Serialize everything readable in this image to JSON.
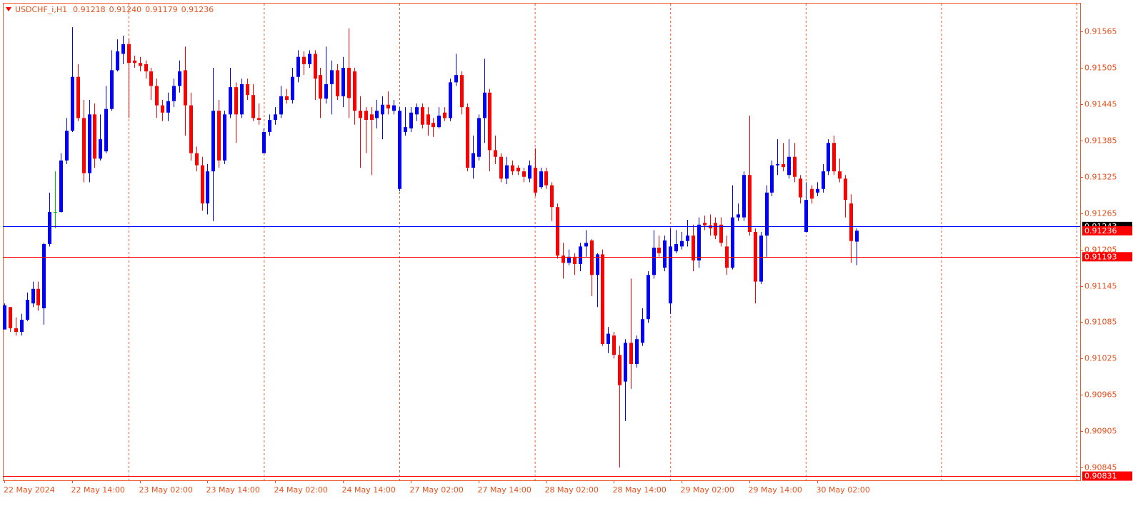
{
  "chart_data": {
    "type": "candlestick",
    "title": "USDCHF_i,H1",
    "title_values": [
      "0.91218",
      "0.91240",
      "0.91179",
      "0.91236"
    ],
    "categories": [
      "22 May 2024",
      null,
      null,
      null,
      null,
      null,
      null,
      null,
      null,
      null,
      null,
      null,
      "22 May 14:00",
      null,
      null,
      null,
      null,
      null,
      null,
      null,
      null,
      null,
      null,
      null,
      "23 May 02:00",
      null,
      null,
      null,
      null,
      null,
      null,
      null,
      null,
      null,
      null,
      null,
      "23 May 14:00",
      null,
      null,
      null,
      null,
      null,
      null,
      null,
      null,
      null,
      null,
      null,
      "24 May 02:00",
      null,
      null,
      null,
      null,
      null,
      null,
      null,
      null,
      null,
      null,
      null,
      "24 May 14:00",
      null,
      null,
      null,
      null,
      null,
      null,
      null,
      null,
      null,
      null,
      null,
      "27 May 02:00",
      null,
      null,
      null,
      null,
      null,
      null,
      null,
      null,
      null,
      null,
      null,
      "27 May 14:00",
      null,
      null,
      null,
      null,
      null,
      null,
      null,
      null,
      null,
      null,
      null,
      "28 May 02:00",
      null,
      null,
      null,
      null,
      null,
      null,
      null,
      null,
      null,
      null,
      null,
      "28 May 14:00",
      null,
      null,
      null,
      null,
      null,
      null,
      null,
      null,
      null,
      null,
      null,
      "29 May 02:00",
      null,
      null,
      null,
      null,
      null,
      null,
      null,
      null,
      null,
      null,
      null,
      "29 May 14:00",
      null,
      null,
      null,
      null,
      null,
      null,
      null,
      null,
      null,
      null,
      null,
      "30 May 02:00",
      null,
      null,
      null,
      null,
      null,
      null,
      null
    ],
    "open": [
      0.91073,
      0.9111,
      0.91075,
      0.91069,
      0.91089,
      0.91116,
      0.9114,
      0.91108,
      0.91214,
      0.91267,
      0.91267,
      0.91352,
      0.91401,
      0.9149,
      0.91422,
      0.91331,
      0.91428,
      0.91355,
      0.91367,
      0.91437,
      0.91501,
      0.91528,
      0.91544,
      0.91517,
      0.91513,
      0.91511,
      0.91499,
      0.91475,
      0.91443,
      0.91431,
      0.9145,
      0.91475,
      0.91501,
      0.91443,
      0.91364,
      0.91344,
      0.91281,
      0.91334,
      0.91434,
      0.91352,
      0.91428,
      0.91473,
      0.91428,
      0.91478,
      0.9146,
      0.91422,
      0.91364,
      0.91399,
      0.91419,
      0.91428,
      0.91458,
      0.91452,
      0.9149,
      0.91523,
      0.91511,
      0.91528,
      0.91493,
      0.91454,
      0.91478,
      0.91501,
      0.91458,
      0.91505,
      0.91499,
      0.91434,
      0.91434,
      0.91428,
      0.91422,
      0.91428,
      0.91444,
      0.91434,
      0.91305,
      0.91399,
      0.91405,
      0.91428,
      0.9144,
      0.91428,
      0.91414,
      0.91407,
      0.91431,
      0.91422,
      0.91481,
      0.91493,
      0.9144,
      0.9134,
      0.91358,
      0.91422,
      0.91464,
      0.91369,
      0.91358,
      0.91322,
      0.91344,
      0.9134,
      0.91334,
      0.91322,
      0.9134,
      0.91308,
      0.91334,
      0.91311,
      0.91275,
      0.91195,
      0.91183,
      0.91193,
      0.91181,
      0.9121,
      0.9122,
      0.91163,
      0.91197,
      0.91049,
      0.91063,
      0.91031,
      0.90987,
      0.91051,
      0.91016,
      0.91051,
      0.9109,
      0.91163,
      0.91208,
      0.91175,
      0.91116,
      0.91202,
      0.9121,
      0.91219,
      0.91228,
      0.91187,
      0.91249,
      0.91245,
      0.91249,
      0.91246,
      0.9121,
      0.91175,
      0.91258,
      0.91258,
      0.91328,
      0.91234,
      0.91152,
      0.91228,
      0.91299,
      0.91344,
      0.91346,
      0.91328,
      0.91358,
      0.91322,
      0.91234,
      0.91305,
      0.91299,
      0.91305,
      0.91334,
      0.91381,
      0.91334,
      0.91322,
      0.91281,
      0.91218
    ],
    "high": [
      0.91116,
      0.9111,
      0.91093,
      0.91099,
      0.91134,
      0.91152,
      0.91152,
      0.91216,
      0.91299,
      0.91334,
      0.91364,
      0.91422,
      0.91572,
      0.91511,
      0.91452,
      0.91452,
      0.91446,
      0.91428,
      0.91475,
      0.91534,
      0.91552,
      0.91558,
      0.91552,
      0.91525,
      0.91523,
      0.91517,
      0.91505,
      0.91487,
      0.91452,
      0.91464,
      0.91487,
      0.91517,
      0.9154,
      0.91464,
      0.91375,
      0.91358,
      0.91346,
      0.91505,
      0.91452,
      0.91434,
      0.91505,
      0.91481,
      0.91487,
      0.91487,
      0.91478,
      0.91446,
      0.91405,
      0.91428,
      0.9144,
      0.91475,
      0.9147,
      0.91505,
      0.91534,
      0.91532,
      0.91534,
      0.91534,
      0.91505,
      0.9154,
      0.91517,
      0.91511,
      0.91523,
      0.9157,
      0.91505,
      0.91458,
      0.9144,
      0.9144,
      0.91452,
      0.91458,
      0.91466,
      0.91452,
      0.9144,
      0.9144,
      0.9144,
      0.91446,
      0.91446,
      0.9144,
      0.91422,
      0.9144,
      0.9144,
      0.91487,
      0.91528,
      0.91499,
      0.91446,
      0.91393,
      0.91428,
      0.9152,
      0.9147,
      0.91393,
      0.91364,
      0.91358,
      0.91352,
      0.91344,
      0.9134,
      0.91352,
      0.91372,
      0.9134,
      0.9134,
      0.91316,
      0.91281,
      0.91216,
      0.91205,
      0.91199,
      0.91216,
      0.91237,
      0.91222,
      0.91199,
      0.91205,
      0.91077,
      0.91069,
      0.91046,
      0.91057,
      0.91157,
      0.91063,
      0.91108,
      0.91169,
      0.91237,
      0.91228,
      0.91228,
      0.9124,
      0.91237,
      0.91234,
      0.91254,
      0.91246,
      0.91258,
      0.91261,
      0.91263,
      0.91258,
      0.91258,
      0.91228,
      0.91311,
      0.91281,
      0.91334,
      0.91426,
      0.9124,
      0.91234,
      0.91311,
      0.91352,
      0.91387,
      0.91381,
      0.91387,
      0.91381,
      0.91328,
      0.91316,
      0.91311,
      0.91316,
      0.91346,
      0.91387,
      0.91393,
      0.91355,
      0.91328,
      0.91296,
      0.9124
    ],
    "low": [
      0.91073,
      0.91069,
      0.91063,
      0.91063,
      0.91087,
      0.9111,
      0.91104,
      0.91081,
      0.9121,
      0.9124,
      0.91266,
      0.91346,
      0.91399,
      0.91417,
      0.91316,
      0.91316,
      0.9134,
      0.91352,
      0.91364,
      0.91434,
      0.91499,
      0.91511,
      0.91422,
      0.91505,
      0.91499,
      0.91487,
      0.91452,
      0.91422,
      0.91417,
      0.91417,
      0.9144,
      0.91464,
      0.91393,
      0.91352,
      0.91334,
      0.91269,
      0.91263,
      0.91252,
      0.9134,
      0.91346,
      0.91422,
      0.91381,
      0.91422,
      0.91452,
      0.91417,
      0.91411,
      0.91364,
      0.91393,
      0.91411,
      0.91422,
      0.91446,
      0.91446,
      0.91481,
      0.91493,
      0.91505,
      0.91452,
      0.91422,
      0.91446,
      0.91428,
      0.91452,
      0.9144,
      0.91422,
      0.91411,
      0.9134,
      0.91364,
      0.91328,
      0.91405,
      0.91387,
      0.91428,
      0.91428,
      0.91301,
      0.91393,
      0.91399,
      0.91417,
      0.91405,
      0.91393,
      0.91391,
      0.91405,
      0.91417,
      0.91417,
      0.91475,
      0.91428,
      0.91334,
      0.91322,
      0.91352,
      0.91381,
      0.91334,
      0.91346,
      0.91316,
      0.91313,
      0.91328,
      0.91328,
      0.91316,
      0.91316,
      0.91293,
      0.91305,
      0.91305,
      0.91252,
      0.9119,
      0.91157,
      0.91179,
      0.91163,
      0.91169,
      0.91193,
      0.91128,
      0.9111,
      0.91046,
      0.91034,
      0.91025,
      0.90845,
      0.90922,
      0.90975,
      0.9101,
      0.91046,
      0.91084,
      0.91157,
      0.91193,
      0.91169,
      0.91099,
      0.91199,
      0.91205,
      0.9121,
      0.91169,
      0.91175,
      0.91237,
      0.91228,
      0.91222,
      0.9121,
      0.91163,
      0.91172,
      0.91252,
      0.91252,
      0.91228,
      0.91116,
      0.91148,
      0.91193,
      0.91293,
      0.91328,
      0.91334,
      0.91322,
      0.91316,
      0.91281,
      0.91233,
      0.91281,
      0.91293,
      0.91299,
      0.91328,
      0.91328,
      0.91316,
      0.91258,
      0.91183,
      0.91179
    ],
    "close": [
      0.91113,
      0.91075,
      0.91069,
      0.91089,
      0.91122,
      0.9114,
      0.91113,
      0.91214,
      0.91267,
      0.91267,
      0.91352,
      0.91401,
      0.9149,
      0.91422,
      0.91331,
      0.91428,
      0.91355,
      0.91387,
      0.91437,
      0.91501,
      0.91532,
      0.91544,
      0.91513,
      0.91513,
      0.91508,
      0.91499,
      0.91475,
      0.91443,
      0.91431,
      0.9145,
      0.91475,
      0.91499,
      0.91443,
      0.91364,
      0.91344,
      0.91281,
      0.91334,
      0.91434,
      0.91352,
      0.91428,
      0.91473,
      0.91428,
      0.91478,
      0.9146,
      0.91422,
      0.91419,
      0.91399,
      0.91419,
      0.91428,
      0.91458,
      0.91452,
      0.9149,
      0.91523,
      0.91511,
      0.91528,
      0.91487,
      0.91454,
      0.91478,
      0.91501,
      0.91458,
      0.91505,
      0.91455,
      0.91434,
      0.91422,
      0.91419,
      0.91419,
      0.91434,
      0.91444,
      0.91438,
      0.91443,
      0.91434,
      0.91407,
      0.91431,
      0.9144,
      0.91411,
      0.91411,
      0.91407,
      0.91426,
      0.91422,
      0.91481,
      0.91493,
      0.9144,
      0.9134,
      0.91364,
      0.91422,
      0.91464,
      0.91369,
      0.91358,
      0.91322,
      0.91344,
      0.91334,
      0.91334,
      0.91325,
      0.91344,
      0.91299,
      0.91334,
      0.91311,
      0.91275,
      0.91195,
      0.91183,
      0.91193,
      0.91181,
      0.9121,
      0.91216,
      0.91163,
      0.91197,
      0.91049,
      0.91066,
      0.91031,
      0.90981,
      0.91051,
      0.91016,
      0.91057,
      0.9109,
      0.91163,
      0.91208,
      0.91199,
      0.9122,
      0.9121,
      0.91214,
      0.91219,
      0.91228,
      0.91187,
      0.91246,
      0.91245,
      0.9124,
      0.91228,
      0.91216,
      0.91175,
      0.91258,
      0.91263,
      0.91328,
      0.91234,
      0.91152,
      0.91228,
      0.91299,
      0.91344,
      0.91346,
      0.91341,
      0.91358,
      0.91325,
      0.91291,
      0.91287,
      0.91289,
      0.91305,
      0.91334,
      0.91381,
      0.91334,
      0.91322,
      0.91287,
      0.91219,
      0.91236
    ],
    "up_color": "#0000ff",
    "down_color": "#ff0000",
    "doji_color": "#00c000",
    "ylim": [
      0.90824,
      0.91611
    ],
    "yticks": [
      0.91565,
      0.91505,
      0.91445,
      0.91385,
      0.91325,
      0.91265,
      0.91205,
      0.91145,
      0.91085,
      0.91025,
      0.90965,
      0.90905,
      0.90845
    ],
    "price_lines": [
      {
        "value": 0.91243,
        "color": "#0000ff",
        "label_color": "#000000"
      },
      {
        "value": 0.91193,
        "color": "#ff0000",
        "label_color": "#ff0000"
      },
      {
        "value": 0.90831,
        "color": "#ff0000",
        "label_color": "#ff0000"
      }
    ],
    "current_price_color": "#ff0000",
    "grid": true
  }
}
